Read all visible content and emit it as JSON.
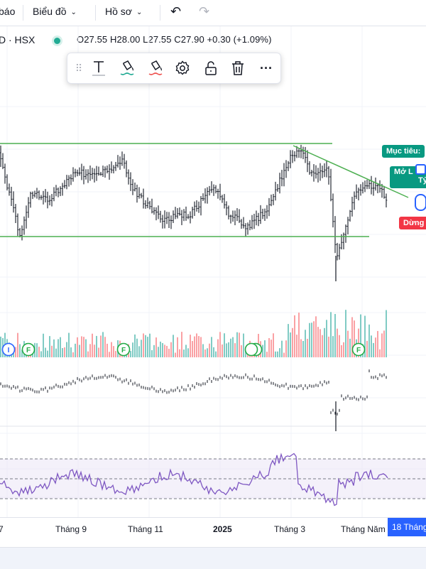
{
  "topbar": {
    "partial_label": "báo",
    "chart_menu": "Biểu đồ",
    "profile_menu": "Hồ sơ",
    "undo_icon": "undo-icon",
    "redo_icon": "redo-icon"
  },
  "legend": {
    "symbol": "D · HSX",
    "status_color": "#22ab94",
    "ohlc": "O27.55  H28.00  L27.55  C27.90  +0.30 (+1.09%)"
  },
  "drawing_toolbar": {
    "icons": [
      "drag-handle-icon",
      "text-icon",
      "line-color-icon",
      "fill-color-icon",
      "settings-icon",
      "unlock-icon",
      "delete-icon",
      "more-icon"
    ]
  },
  "chart_data": {
    "type": "candlestick",
    "description_values": {
      "price_channel_upper": 30.5,
      "price_channel_lower": 24.8,
      "last_close": 27.9
    },
    "overlays": {
      "colors": {
        "up": "#26a69a",
        "down": "#ef5350",
        "trendline": "#4caf50",
        "rsi": "#7e57c2",
        "bar": "#131722"
      }
    },
    "events": [
      {
        "label": "I",
        "color": "#2962ff"
      },
      {
        "label": "F",
        "color": "#22ab45"
      },
      {
        "label": "F",
        "color": "#22ab45"
      },
      {
        "label": "F",
        "color": "#22ab45"
      },
      {
        "label": "F",
        "color": "#22ab45"
      }
    ],
    "x_tick_labels": [
      "7",
      "Tháng 9",
      "Tháng 11",
      "2025",
      "Tháng 3",
      "Tháng Năm"
    ]
  },
  "badges": {
    "target": "Mục tiêu:",
    "open": "Mở L",
    "ratio": "Tỷ",
    "stop": "Dừng"
  },
  "xaxis": {
    "current": "18 Tháng"
  }
}
